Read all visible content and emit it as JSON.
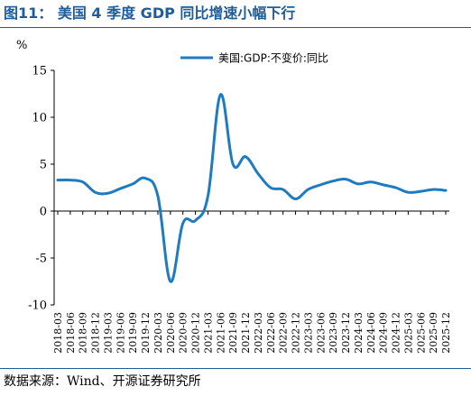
{
  "figure": {
    "title": "图11：  美国 4 季度 GDP 同比增速小幅下行",
    "source": "数据来源：Wind、开源证券研究所"
  },
  "colors": {
    "title": "#1f5c99",
    "line": "#1f7bc0",
    "axis": "#000000"
  },
  "chart_data": {
    "type": "line",
    "title": "美国 4 季度 GDP 同比增速小幅下行",
    "ylabel": "%",
    "xlabel": "",
    "ylim": [
      -10,
      15
    ],
    "yticks": [
      -10,
      -5,
      0,
      5,
      10,
      15
    ],
    "grid": false,
    "legend_position": "top-right",
    "x": [
      "2018-03",
      "2018-06",
      "2018-09",
      "2018-12",
      "2019-03",
      "2019-06",
      "2019-09",
      "2019-12",
      "2020-03",
      "2020-06",
      "2020-09",
      "2020-12",
      "2021-03",
      "2021-06",
      "2021-09",
      "2021-12",
      "2022-03",
      "2022-06",
      "2022-09",
      "2022-12",
      "2023-03",
      "2023-06",
      "2023-09",
      "2023-12",
      "2024-03",
      "2024-06",
      "2024-09",
      "2024-12",
      "2025-03",
      "2025-06",
      "2025-09",
      "2025-12"
    ],
    "series": [
      {
        "name": "美国:GDP:不变价:同比",
        "color": "#1f7bc0",
        "values": [
          3.3,
          3.3,
          3.1,
          2.0,
          1.9,
          2.4,
          2.9,
          3.5,
          1.6,
          -7.5,
          -1.3,
          -1.0,
          1.6,
          12.4,
          5.0,
          5.8,
          4.0,
          2.5,
          2.3,
          1.3,
          2.3,
          2.8,
          3.2,
          3.4,
          2.9,
          3.1,
          2.8,
          2.5,
          2.0,
          2.1,
          2.3,
          2.2
        ]
      }
    ]
  }
}
